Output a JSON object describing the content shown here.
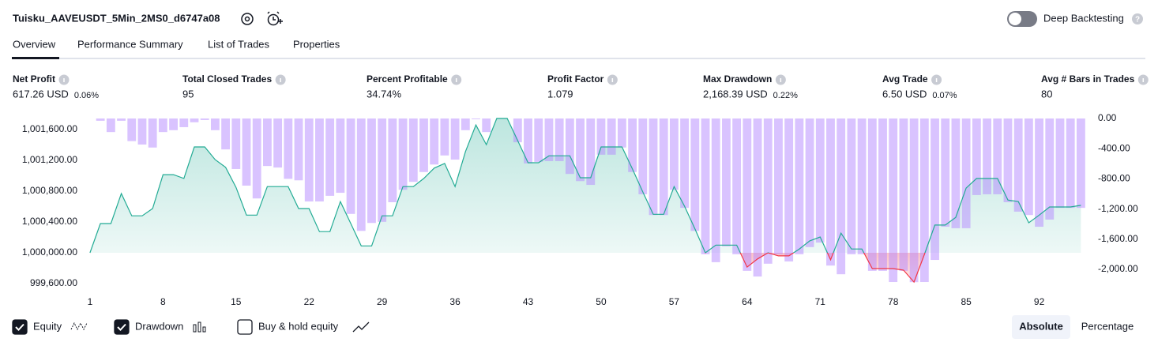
{
  "header": {
    "title": "Tuisku_AAVEUSDT_5Min_2MS0_d6747a08",
    "toggle_label": "Deep Backtesting"
  },
  "tabs": [
    "Overview",
    "Performance Summary",
    "List of Trades",
    "Properties"
  ],
  "metrics": [
    {
      "label": "Net Profit",
      "value": "617.26 USD",
      "percent": "0.06%",
      "color": "#089981"
    },
    {
      "label": "Total Closed Trades",
      "value": "95",
      "color": "#131722"
    },
    {
      "label": "Percent Profitable",
      "value": "34.74%",
      "color": "#089981"
    },
    {
      "label": "Profit Factor",
      "value": "1.079",
      "color": "#089981"
    },
    {
      "label": "Max Drawdown",
      "value": "2,168.39 USD",
      "percent": "0.22%",
      "color": "#f23645"
    },
    {
      "label": "Avg Trade",
      "value": "6.50 USD",
      "percent": "0.07%",
      "color": "#089981"
    },
    {
      "label": "Avg # Bars in Trades",
      "value": "80",
      "color": "#131722"
    }
  ],
  "chart_data": {
    "type": "line",
    "x": [
      1,
      2,
      3,
      4,
      5,
      6,
      7,
      8,
      9,
      10,
      11,
      12,
      13,
      14,
      15,
      16,
      17,
      18,
      19,
      20,
      21,
      22,
      23,
      24,
      25,
      26,
      27,
      28,
      29,
      30,
      31,
      32,
      33,
      34,
      35,
      36,
      37,
      38,
      39,
      40,
      41,
      42,
      43,
      44,
      45,
      46,
      47,
      48,
      49,
      50,
      51,
      52,
      53,
      54,
      55,
      56,
      57,
      58,
      59,
      60,
      61,
      62,
      63,
      64,
      65,
      66,
      67,
      68,
      69,
      70,
      71,
      72,
      73,
      74,
      75,
      76,
      77,
      78,
      79,
      80,
      81,
      82,
      83,
      84,
      85,
      86,
      87,
      88,
      89,
      90,
      91,
      92,
      93,
      94,
      95,
      96
    ],
    "xlim": [
      0.55,
      96.5
    ],
    "xticks": [
      1,
      8,
      15,
      22,
      29,
      36,
      43,
      50,
      57,
      64,
      71,
      78,
      85,
      92
    ],
    "ylim": [
      999467,
      1001744
    ],
    "yticks": [
      {
        "value": 999600,
        "label": "999,600.00"
      },
      {
        "value": 1000000,
        "label": "1,000,000.00"
      },
      {
        "value": 1000400,
        "label": "1,000,400.00"
      },
      {
        "value": 1000800,
        "label": "1,000,800.00"
      },
      {
        "value": 1001200,
        "label": "1,001,200.00"
      },
      {
        "value": 1001600,
        "label": "1,001,600.00"
      }
    ],
    "y2lim": [
      -2325,
      0
    ],
    "y2ticks": [
      {
        "value": 0,
        "label": "0.00"
      },
      {
        "value": -400,
        "label": "-400.00"
      },
      {
        "value": -800,
        "label": "-800.00"
      },
      {
        "value": -1200,
        "label": "-1,200.00"
      },
      {
        "value": -1600,
        "label": "-1,600.00"
      },
      {
        "value": -2000,
        "label": "-2,000.00"
      }
    ],
    "series": [
      {
        "name": "Equity",
        "color": "#22ab94",
        "negative_color": "#f23645",
        "visible": true,
        "values": [
          1000000,
          1000380,
          1000380,
          1000770,
          1000480,
          1000480,
          1000575,
          1001015,
          1001015,
          1000965,
          1001375,
          1001375,
          1001210,
          1001110,
          1000850,
          1000490,
          1000490,
          1000860,
          1000860,
          1000860,
          1000575,
          1000575,
          1000275,
          1000275,
          1000665,
          1000380,
          1000090,
          1000090,
          1000480,
          1000480,
          1000860,
          1000860,
          1000965,
          1001100,
          1001160,
          1000860,
          1001315,
          1001660,
          1001405,
          1001745,
          1001745,
          1001460,
          1001170,
          1001170,
          1001260,
          1001260,
          1001260,
          1000975,
          1000975,
          1001375,
          1001375,
          1001375,
          1001090,
          1000790,
          1000500,
          1000500,
          1000860,
          1000605,
          1000310,
          1000000,
          1000100,
          1000100,
          1000100,
          999815,
          999920,
          1000000,
          999960,
          999960,
          1000050,
          1000155,
          1000205,
          999910,
          1000255,
          1000050,
          1000050,
          999795,
          999795,
          999795,
          999775,
          999620,
          999980,
          1000360,
          1000360,
          1000460,
          1000840,
          1000965,
          1000965,
          1000965,
          1000685,
          1000665,
          1000390,
          1000490,
          1000595,
          1000595,
          1000595,
          1000617
        ]
      },
      {
        "name": "Drawdown",
        "type": "bar",
        "axis": "y2",
        "color": "#b388ff",
        "visible": true,
        "values": [
          0,
          -30,
          -180,
          -30,
          -300,
          -345,
          -385,
          -180,
          -155,
          -115,
          -50,
          -20,
          -155,
          -410,
          -670,
          -890,
          -1060,
          -630,
          -650,
          -800,
          -820,
          -1100,
          -1100,
          -1025,
          -985,
          -1265,
          -1490,
          -1385,
          -1370,
          -1110,
          -945,
          -840,
          -710,
          -610,
          -490,
          -545,
          -155,
          -10,
          -180,
          0,
          0,
          -315,
          -595,
          -575,
          -565,
          -565,
          -735,
          -830,
          -880,
          -480,
          -480,
          -385,
          -710,
          -1005,
          -1280,
          -1280,
          -945,
          -1185,
          -1490,
          -1800,
          -1905,
          -1695,
          -1800,
          -2020,
          -2095,
          -1925,
          -1800,
          -1895,
          -1800,
          -1705,
          -1645,
          -1950,
          -2065,
          -1800,
          -1800,
          -2020,
          -2020,
          -2168,
          -2020,
          -2170,
          -2168,
          -1875,
          -1435,
          -1455,
          -1455,
          -1015,
          -1005,
          -1005,
          -1110,
          -1235,
          -1280,
          -1435,
          -1340,
          -1185,
          -1185,
          -1185
        ]
      }
    ]
  },
  "footer": {
    "buy_hold_label": "Buy & hold equity",
    "buy_hold_checked": false,
    "scale_modes": [
      "Absolute",
      "Percentage"
    ],
    "active_scale": 0
  }
}
